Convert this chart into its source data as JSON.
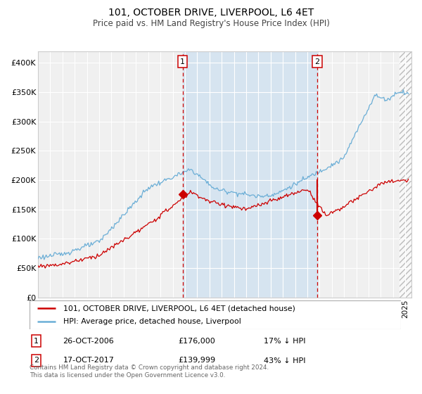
{
  "title": "101, OCTOBER DRIVE, LIVERPOOL, L6 4ET",
  "subtitle": "Price paid vs. HM Land Registry's House Price Index (HPI)",
  "hpi_color": "#6baed6",
  "price_color": "#cc0000",
  "shade_color": "#d6e4f0",
  "plot_bg": "#f0f0f0",
  "grid_color": "#ffffff",
  "xlim_start": 1995.0,
  "xlim_end": 2025.5,
  "ylim": [
    0,
    420000
  ],
  "yticks": [
    0,
    50000,
    100000,
    150000,
    200000,
    250000,
    300000,
    350000,
    400000
  ],
  "ytick_labels": [
    "£0",
    "£50K",
    "£100K",
    "£150K",
    "£200K",
    "£250K",
    "£300K",
    "£350K",
    "£400K"
  ],
  "sale1_date": 2006.82,
  "sale1_price": 176000,
  "sale1_hpi_price": 212000,
  "sale2_date": 2017.8,
  "sale2_price": 139999,
  "sale2_hpi_price": 244000,
  "shade_start": 2006.82,
  "shade_end": 2017.8,
  "hatch_start": 2024.5,
  "legend_label1": "101, OCTOBER DRIVE, LIVERPOOL, L6 4ET (detached house)",
  "legend_label2": "HPI: Average price, detached house, Liverpool",
  "table_row1": [
    "1",
    "26-OCT-2006",
    "£176,000",
    "17% ↓ HPI"
  ],
  "table_row2": [
    "2",
    "17-OCT-2017",
    "£139,999",
    "43% ↓ HPI"
  ],
  "footnote": "Contains HM Land Registry data © Crown copyright and database right 2024.\nThis data is licensed under the Open Government Licence v3.0."
}
